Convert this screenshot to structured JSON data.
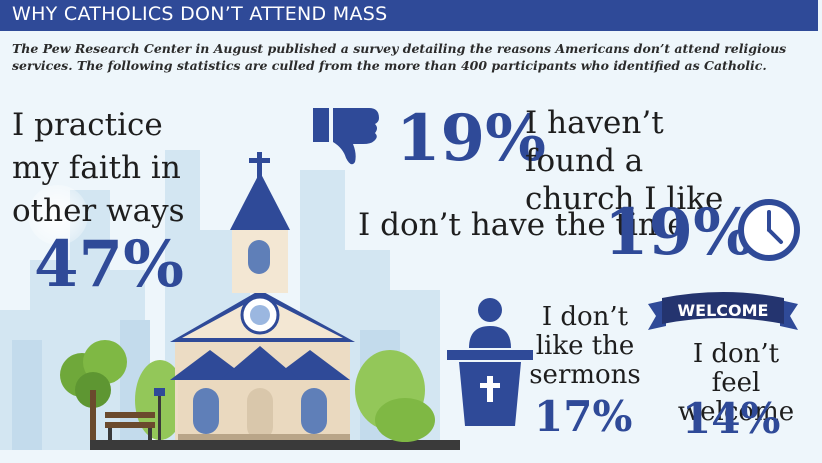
{
  "header": {
    "title": "WHY CATHOLICS DON’T ATTEND MASS"
  },
  "intro": {
    "text": "The Pew Research Center in August published a survey detailing the reasons Americans don’t attend religious services. The following statistics are culled from the more than 400 participants who identified as Catholic."
  },
  "stats": {
    "practice": {
      "label": "I practice my faith in other ways",
      "value": "47%"
    },
    "church": {
      "label": "I haven’t found a church I like",
      "value": "19%"
    },
    "time": {
      "label": "I don’t have the time",
      "value": "19%"
    },
    "sermons": {
      "label": "I don’t like the sermons",
      "value": "17%"
    },
    "welcome": {
      "label": "I don’t feel welcome",
      "value": "14%",
      "banner": "WELCOME"
    }
  },
  "icons": [
    "thumbs-down-icon",
    "clock-icon",
    "pulpit-icon",
    "welcome-banner-icon",
    "church-illustration"
  ],
  "colors": {
    "navy": "#2f4a98",
    "text": "#1e1e1e",
    "background": "#eef6fb"
  }
}
